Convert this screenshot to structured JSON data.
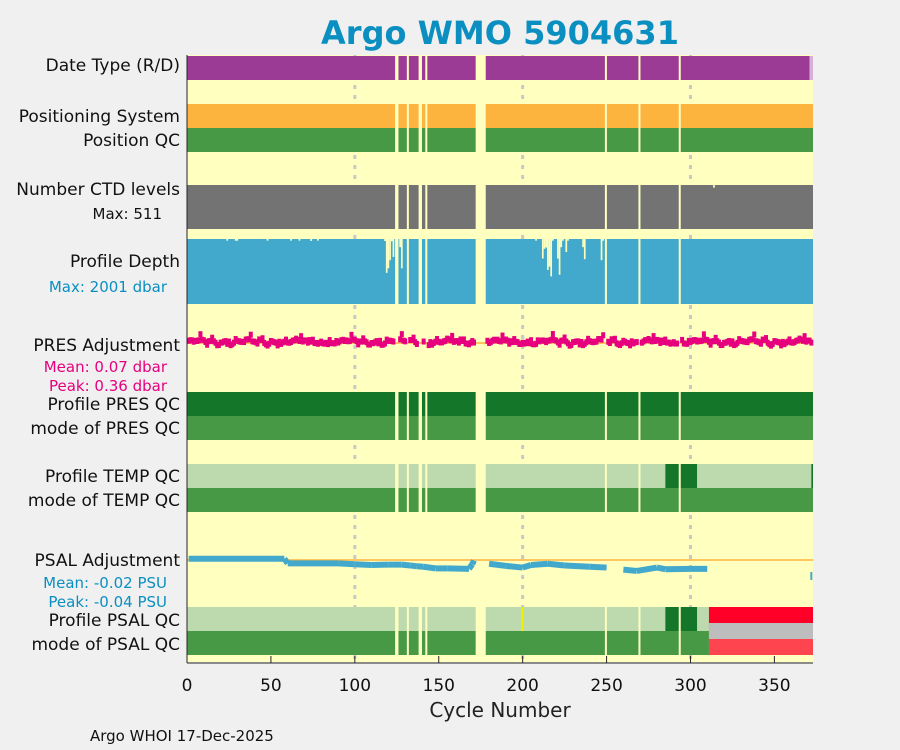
{
  "chart_data": {
    "type": "table",
    "title": "Argo WMO 5904631",
    "xlabel": "Cycle Number",
    "xlim": [
      0,
      373
    ],
    "x_ticks": [
      0,
      50,
      100,
      150,
      200,
      250,
      300,
      350
    ],
    "grid_x": [
      100,
      200,
      300
    ],
    "footer": "Argo WHOI 17-Dec-2025",
    "missing_cycles": [
      [
        124,
        126
      ],
      [
        131,
        132
      ],
      [
        138,
        140
      ],
      [
        142,
        143
      ],
      [
        172,
        178
      ],
      [
        249,
        250
      ],
      [
        269,
        270
      ],
      [
        293,
        294
      ]
    ],
    "rows": {
      "date_type": {
        "label": "Date Type (R/D)",
        "segments": [
          {
            "from": 0,
            "to": 371,
            "color": "#9b3b96"
          },
          {
            "from": 371,
            "to": 373,
            "color": "#d8b0d8"
          }
        ]
      },
      "positioning_system": {
        "label": "Positioning System",
        "segments": [
          {
            "from": 0,
            "to": 373,
            "color": "#fdb43f"
          }
        ]
      },
      "position_qc": {
        "label": "Position QC",
        "segments": [
          {
            "from": 0,
            "to": 373,
            "color": "#479946"
          }
        ]
      },
      "ctd_levels": {
        "label": "Number CTD levels",
        "max_label": "Max: 511",
        "max": 511,
        "color": "#737373",
        "shallow": [
          [
            314,
            480
          ]
        ]
      },
      "profile_depth": {
        "label": "Profile Depth",
        "max_label": "Max: 2001 dbar",
        "max": 2001,
        "color": "#42a9cc",
        "shallow": [
          [
            24,
            1950
          ],
          [
            29,
            1950
          ],
          [
            30,
            1950
          ],
          [
            48,
            1950
          ],
          [
            62,
            1950
          ],
          [
            67,
            1950
          ],
          [
            74,
            1940
          ],
          [
            78,
            1950
          ],
          [
            118,
            1940
          ],
          [
            119,
            960
          ],
          [
            120,
            1100
          ],
          [
            121,
            1350
          ],
          [
            122,
            1930
          ],
          [
            123,
            1450
          ],
          [
            127,
            1750
          ],
          [
            128,
            1100
          ],
          [
            208,
            1950
          ],
          [
            212,
            1400
          ],
          [
            213,
            1700
          ],
          [
            214,
            1740
          ],
          [
            215,
            1050
          ],
          [
            216,
            1150
          ],
          [
            217,
            850
          ],
          [
            218,
            1950
          ],
          [
            221,
            1400
          ],
          [
            222,
            900
          ],
          [
            223,
            1750
          ],
          [
            224,
            1950
          ],
          [
            226,
            1600
          ],
          [
            227,
            1950
          ],
          [
            236,
            1750
          ],
          [
            237,
            1380
          ],
          [
            247,
            1350
          ],
          [
            248,
            1950
          ]
        ]
      },
      "pres_adjustment": {
        "label": "PRES Adjustment",
        "mean_label": "Mean: 0.07 dbar",
        "peak_label": "Peak: 0.36 dbar",
        "color": "#e6007e",
        "ref_color": "#fdb43f"
      },
      "profile_pres_qc": {
        "label": "Profile PRES QC",
        "segments": [
          {
            "from": 0,
            "to": 373,
            "color": "#137629"
          }
        ]
      },
      "mode_pres_qc": {
        "label": "mode of PRES QC",
        "segments": [
          {
            "from": 0,
            "to": 373,
            "color": "#479946"
          }
        ]
      },
      "profile_temp_qc": {
        "label": "Profile TEMP QC",
        "segments": [
          {
            "from": 0,
            "to": 285,
            "color": "#bcdaad"
          },
          {
            "from": 285,
            "to": 304,
            "color": "#137629"
          },
          {
            "from": 304,
            "to": 372,
            "color": "#bcdaad"
          },
          {
            "from": 372,
            "to": 373,
            "color": "#137629"
          }
        ]
      },
      "mode_temp_qc": {
        "label": "mode of TEMP QC",
        "segments": [
          {
            "from": 0,
            "to": 373,
            "color": "#479946"
          }
        ]
      },
      "psal_adjustment": {
        "label": "PSAL Adjustment",
        "mean_label": "Mean: -0.02 PSU",
        "peak_label": "Peak: -0.04 PSU",
        "color": "#42a9cc",
        "ref_color": "#fdb43f",
        "points": [
          [
            1,
            0.003
          ],
          [
            58,
            0.003
          ],
          [
            60,
            -0.008
          ],
          [
            90,
            -0.008
          ],
          [
            100,
            -0.01
          ],
          [
            110,
            -0.012
          ],
          [
            120,
            -0.011
          ],
          [
            123,
            -0.011
          ],
          [
            128,
            -0.011
          ],
          [
            133,
            -0.013
          ],
          [
            137,
            -0.015
          ],
          [
            141,
            -0.016
          ],
          [
            148,
            -0.02
          ],
          [
            155,
            -0.02
          ],
          [
            168,
            -0.021
          ],
          [
            170,
            -0.01
          ],
          [
            171,
            -0.001
          ],
          [
            180,
            -0.009
          ],
          [
            190,
            -0.014
          ],
          [
            200,
            -0.018
          ],
          [
            205,
            -0.012
          ],
          [
            215,
            -0.009
          ],
          [
            225,
            -0.013
          ],
          [
            240,
            -0.016
          ],
          [
            250,
            -0.018
          ],
          [
            260,
            -0.023
          ],
          [
            268,
            -0.026
          ],
          [
            280,
            -0.018
          ],
          [
            285,
            -0.022
          ],
          [
            300,
            -0.021
          ],
          [
            310,
            -0.021
          ],
          [
            372,
            -0.038
          ]
        ]
      },
      "profile_psal_qc": {
        "label": "Profile PSAL QC",
        "segments": [
          {
            "from": 0,
            "to": 199.5,
            "color": "#bcdaad"
          },
          {
            "from": 199.5,
            "to": 200.5,
            "color": "#f2f200"
          },
          {
            "from": 200.5,
            "to": 285,
            "color": "#bcdaad"
          },
          {
            "from": 285,
            "to": 304,
            "color": "#137629"
          },
          {
            "from": 304,
            "to": 311,
            "color": "#bcdaad"
          },
          {
            "from": 311,
            "to": 373,
            "color": "#ff0028"
          }
        ]
      },
      "mode_psal_qc": {
        "label": "mode of PSAL QC",
        "segments": [
          {
            "from": 0,
            "to": 311,
            "color": "#479946"
          },
          {
            "from": 311,
            "to": 373,
            "color": "#fe444f"
          }
        ]
      }
    },
    "pres_series_seed": [
      0.05,
      0.12,
      -0.05,
      0.1,
      0.02,
      0.15,
      -0.08,
      0.06,
      0.09,
      -0.02,
      0.11,
      0.04,
      0.13,
      -0.04,
      0.08,
      0.2,
      0.01,
      0.07,
      -0.06,
      0.12,
      0.05,
      0.1,
      0.03,
      0.14,
      -0.03,
      0.09,
      0.36,
      0.02,
      0.08,
      -0.01
    ]
  }
}
